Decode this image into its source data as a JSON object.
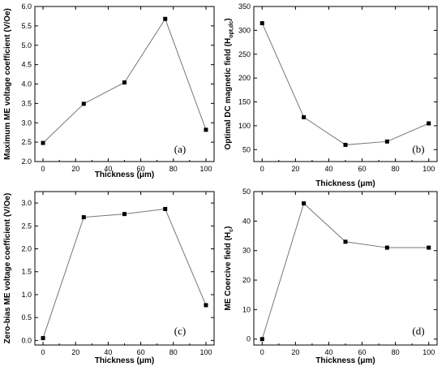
{
  "chart_data": [
    {
      "type": "line",
      "panel_label": "(a)",
      "xlabel": "Thickness (μm)",
      "ylabel": "Maximum ME voltage coefficient (V/Oe)",
      "xlim": [
        -5,
        105
      ],
      "ylim": [
        2.0,
        6.0
      ],
      "xticks": [
        0,
        20,
        40,
        60,
        80,
        100
      ],
      "yticks": [
        2.0,
        2.5,
        3.0,
        3.5,
        4.0,
        4.5,
        5.0,
        5.5,
        6.0
      ],
      "ytick_labels": [
        "2.0",
        "2.5",
        "3.0",
        "3.5",
        "4.0",
        "4.5",
        "5.0",
        "5.5",
        "6.0"
      ],
      "x": [
        0,
        25,
        50,
        75,
        100
      ],
      "y": [
        2.48,
        3.49,
        4.04,
        5.68,
        2.82
      ]
    },
    {
      "type": "line",
      "panel_label": "(b)",
      "xlabel": "Thickness (μm)",
      "ylabel_main": "Optimal DC magnetic field (H",
      "ylabel_sub": "opt,dc",
      "ylabel_end": ")",
      "xlim": [
        -5,
        105
      ],
      "ylim": [
        25,
        350
      ],
      "xticks": [
        0,
        20,
        40,
        60,
        80,
        100
      ],
      "yticks": [
        50,
        100,
        150,
        200,
        250,
        300,
        350
      ],
      "ytick_labels": [
        "50",
        "100",
        "150",
        "200",
        "250",
        "300",
        "350"
      ],
      "x": [
        0,
        25,
        50,
        75,
        100
      ],
      "y": [
        315,
        118,
        60,
        67,
        105
      ]
    },
    {
      "type": "line",
      "panel_label": "(c)",
      "xlabel": "Thickness (μm)",
      "ylabel": "Zero-bias ME voltage coefficient (V/Oe)",
      "xlim": [
        -5,
        105
      ],
      "ylim": [
        -0.1,
        3.25
      ],
      "xticks": [
        0,
        20,
        40,
        60,
        80,
        100
      ],
      "yticks": [
        0.0,
        0.5,
        1.0,
        1.5,
        2.0,
        2.5,
        3.0
      ],
      "ytick_labels": [
        "0.0",
        "0.5",
        "1.0",
        "1.5",
        "2.0",
        "2.5",
        "3.0"
      ],
      "x": [
        0,
        25,
        50,
        75,
        100
      ],
      "y": [
        0.05,
        2.69,
        2.76,
        2.87,
        0.77
      ]
    },
    {
      "type": "line",
      "panel_label": "(d)",
      "xlabel": "Thickness (μm)",
      "ylabel_main": "ME Coercive field (H",
      "ylabel_sub": "c",
      "ylabel_end": ")",
      "xlim": [
        -5,
        105
      ],
      "ylim": [
        -2,
        50
      ],
      "xticks": [
        0,
        20,
        40,
        60,
        80,
        100
      ],
      "yticks": [
        0,
        10,
        20,
        30,
        40,
        50
      ],
      "ytick_labels": [
        "0",
        "10",
        "20",
        "30",
        "40",
        "50"
      ],
      "x": [
        0,
        25,
        50,
        75,
        100
      ],
      "y": [
        0,
        46,
        33,
        31,
        31
      ]
    }
  ]
}
